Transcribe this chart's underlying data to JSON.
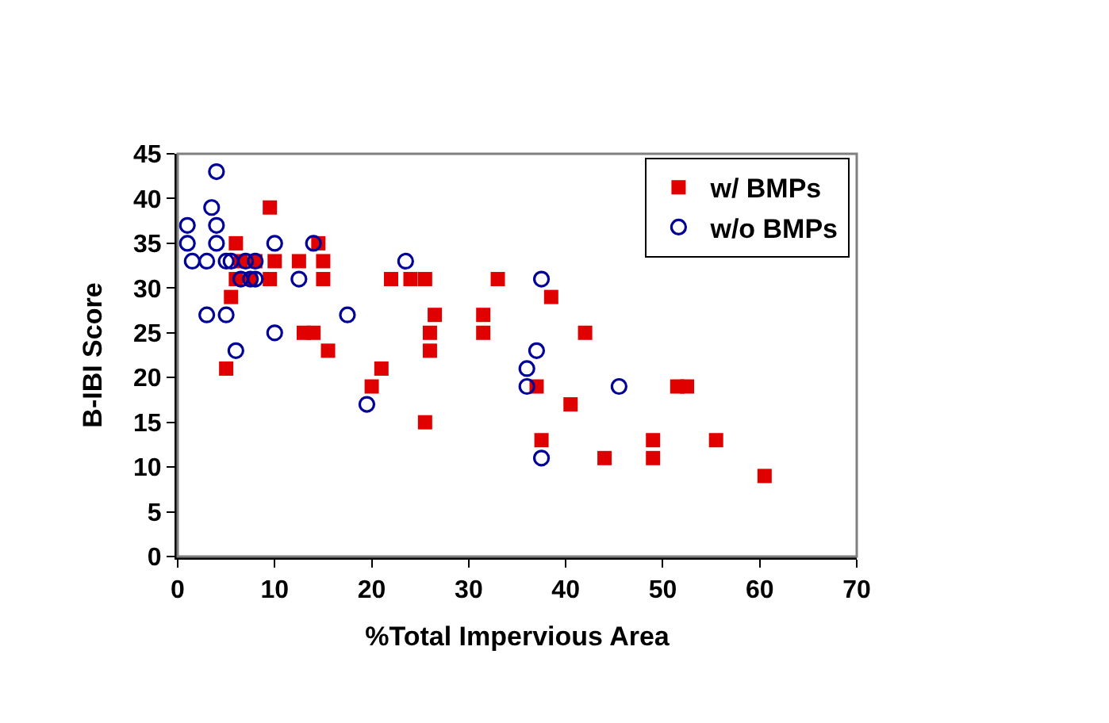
{
  "chart_data": {
    "type": "scatter",
    "xlabel": "%Total Impervious Area",
    "ylabel": "B-IBI Score",
    "xlim": [
      0,
      70
    ],
    "xticks": [
      0,
      10,
      20,
      30,
      40,
      50,
      60,
      70
    ],
    "ylim": [
      0,
      45
    ],
    "yticks": [
      0,
      5,
      10,
      15,
      20,
      25,
      30,
      35,
      40,
      45
    ],
    "legend": "top right",
    "series": [
      {
        "name": "w/ BMPs",
        "color": "#e00000",
        "marker": "square",
        "x": [
          9.5,
          5,
          5.5,
          6,
          6,
          6.5,
          7.5,
          8,
          9.5,
          10,
          14.5,
          12.5,
          13,
          14,
          15,
          15,
          15.5,
          20,
          21,
          22,
          24,
          25.5,
          25.5,
          26,
          26,
          26.5,
          31.5,
          31.5,
          33,
          37,
          37.5,
          38.5,
          40.5,
          42,
          44,
          49,
          49,
          51.5,
          52.5,
          55.5,
          60.5
        ],
        "values": [
          39,
          21,
          29,
          31,
          35,
          33,
          31,
          33,
          31,
          33,
          35,
          33,
          25,
          25,
          33,
          31,
          23,
          19,
          21,
          31,
          31,
          31,
          15,
          25,
          23,
          27,
          27,
          25,
          31,
          19,
          13,
          29,
          17,
          25,
          11,
          13,
          11,
          19,
          19,
          13,
          9
        ]
      },
      {
        "name": "w/o BMPs",
        "color": "#000099",
        "marker": "circle-open",
        "x": [
          1,
          1,
          1.5,
          3,
          3.5,
          4,
          4,
          4,
          3,
          5,
          5,
          5.5,
          6,
          6.5,
          7,
          7.5,
          8,
          8,
          10,
          10,
          12.5,
          14,
          17.5,
          19.5,
          23.5,
          37.5,
          37,
          36,
          36,
          37.5,
          45.5
        ],
        "values": [
          37,
          35,
          33,
          33,
          39,
          35,
          37,
          43,
          27,
          27,
          33,
          33,
          23,
          31,
          33,
          31,
          31,
          33,
          35,
          25,
          31,
          35,
          27,
          17,
          33,
          31,
          23,
          21,
          19,
          11,
          19
        ]
      }
    ]
  }
}
